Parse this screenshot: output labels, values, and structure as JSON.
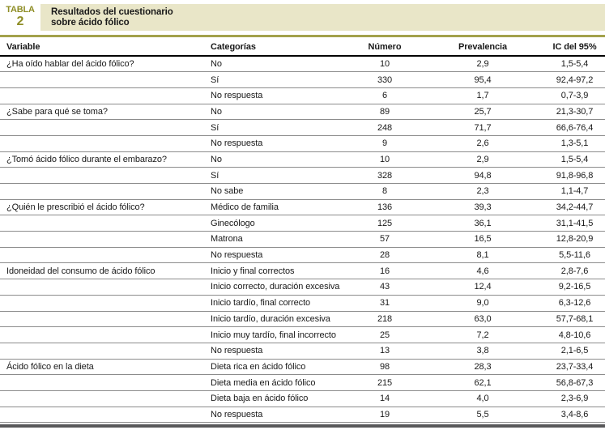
{
  "badge": {
    "label": "TABLA",
    "number": "2"
  },
  "title": {
    "lines": [
      "Resultados del cuestionario",
      "sobre ácido fólico"
    ],
    "full": "Resultados del cuestionario sobre ácido fólico"
  },
  "columns": [
    "Variable",
    "Categorías",
    "Número",
    "Prevalencia",
    "IC del 95%"
  ],
  "rows": [
    {
      "variable": "¿Ha oído hablar del ácido fólico?",
      "categoria": "No",
      "numero": "10",
      "prevalencia": "2,9",
      "ic": "1,5-5,4"
    },
    {
      "variable": "",
      "categoria": "Sí",
      "numero": "330",
      "prevalencia": "95,4",
      "ic": "92,4-97,2"
    },
    {
      "variable": "",
      "categoria": "No respuesta",
      "numero": "6",
      "prevalencia": "1,7",
      "ic": "0,7-3,9"
    },
    {
      "variable": "¿Sabe para qué se toma?",
      "categoria": "No",
      "numero": "89",
      "prevalencia": "25,7",
      "ic": "21,3-30,7"
    },
    {
      "variable": "",
      "categoria": "Sí",
      "numero": "248",
      "prevalencia": "71,7",
      "ic": "66,6-76,4"
    },
    {
      "variable": "",
      "categoria": "No respuesta",
      "numero": "9",
      "prevalencia": "2,6",
      "ic": "1,3-5,1"
    },
    {
      "variable": "¿Tomó ácido fólico durante el embarazo?",
      "categoria": "No",
      "numero": "10",
      "prevalencia": "2,9",
      "ic": "1,5-5,4"
    },
    {
      "variable": "",
      "categoria": "Sí",
      "numero": "328",
      "prevalencia": "94,8",
      "ic": "91,8-96,8"
    },
    {
      "variable": "",
      "categoria": "No sabe",
      "numero": "8",
      "prevalencia": "2,3",
      "ic": "1,1-4,7"
    },
    {
      "variable": "¿Quién le prescribió el ácido fólico?",
      "categoria": "Médico de familia",
      "numero": "136",
      "prevalencia": "39,3",
      "ic": "34,2-44,7"
    },
    {
      "variable": "",
      "categoria": "Ginecólogo",
      "numero": "125",
      "prevalencia": "36,1",
      "ic": "31,1-41,5"
    },
    {
      "variable": "",
      "categoria": "Matrona",
      "numero": "57",
      "prevalencia": "16,5",
      "ic": "12,8-20,9"
    },
    {
      "variable": "",
      "categoria": "No respuesta",
      "numero": "28",
      "prevalencia": "8,1",
      "ic": "5,5-11,6"
    },
    {
      "variable": "Idoneidad del consumo de ácido fólico",
      "categoria": "Inicio y final correctos",
      "numero": "16",
      "prevalencia": "4,6",
      "ic": "2,8-7,6"
    },
    {
      "variable": "",
      "categoria": "Inicio correcto, duración excesiva",
      "numero": "43",
      "prevalencia": "12,4",
      "ic": "9,2-16,5"
    },
    {
      "variable": "",
      "categoria": "Inicio tardío, final correcto",
      "numero": "31",
      "prevalencia": "9,0",
      "ic": "6,3-12,6"
    },
    {
      "variable": "",
      "categoria": "Inicio tardío, duración excesiva",
      "numero": "218",
      "prevalencia": "63,0",
      "ic": "57,7-68,1"
    },
    {
      "variable": "",
      "categoria": "Inicio muy tardío, final incorrecto",
      "numero": "25",
      "prevalencia": "7,2",
      "ic": "4,8-10,6"
    },
    {
      "variable": "",
      "categoria": "No respuesta",
      "numero": "13",
      "prevalencia": "3,8",
      "ic": "2,1-6,5"
    },
    {
      "variable": "Ácido fólico en la dieta",
      "categoria": "Dieta rica en ácido fólico",
      "numero": "98",
      "prevalencia": "28,3",
      "ic": "23,7-33,4"
    },
    {
      "variable": "",
      "categoria": "Dieta media en ácido fólico",
      "numero": "215",
      "prevalencia": "62,1",
      "ic": "56,8-67,3"
    },
    {
      "variable": "",
      "categoria": "Dieta baja en ácido fólico",
      "numero": "14",
      "prevalencia": "4,0",
      "ic": "2,3-6,9"
    },
    {
      "variable": "",
      "categoria": "No respuesta",
      "numero": "19",
      "prevalencia": "5,5",
      "ic": "3,4-8,6"
    }
  ],
  "colors": {
    "olive": "#8e8d25",
    "olive_rule": "#a3a24c",
    "title_bar_bg": "#e9e6c8",
    "header_rule": "#000000",
    "row_rule": "#8c8c8c",
    "bottom_bar": "#58585a"
  }
}
